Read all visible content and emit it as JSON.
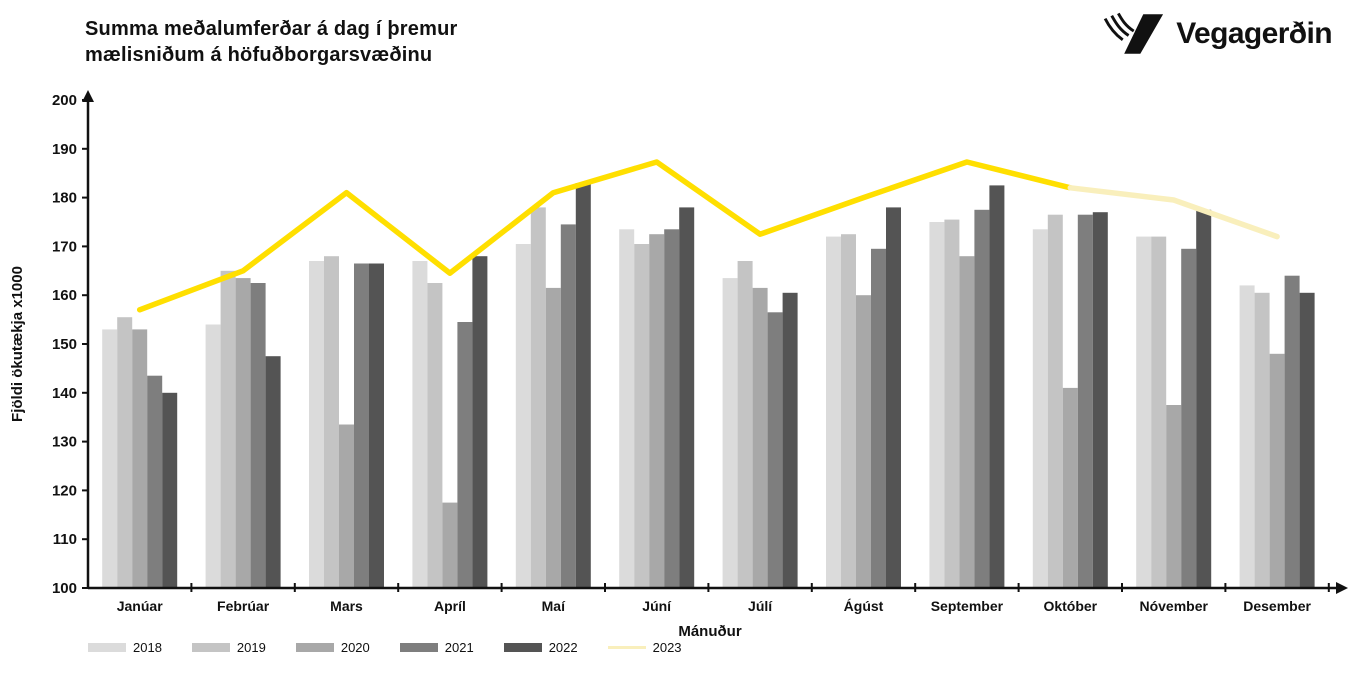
{
  "header": {
    "title_line1": "Summa meðalumferðar á dag í þremur",
    "title_line2": "mælisniðum á höfuðborgarsvæðinu",
    "logo_text": "Vegagerðin"
  },
  "chart_data": {
    "type": "bar",
    "title": "Summa meðalumferðar á dag í þremur mælisniðum á höfuðborgarsvæðinu",
    "xlabel": "Mánuður",
    "ylabel": "Fjöldi ökutækja x1000",
    "ylim": [
      100,
      200
    ],
    "yticks": [
      100,
      110,
      120,
      130,
      140,
      150,
      160,
      170,
      180,
      190,
      200
    ],
    "grid": false,
    "legend_position": "bottom-left",
    "categories": [
      "Janúar",
      "Febrúar",
      "Mars",
      "Apríl",
      "Maí",
      "Júní",
      "Júlí",
      "Ágúst",
      "September",
      "Október",
      "Nóvember",
      "Desember"
    ],
    "series": [
      {
        "name": "2018",
        "type": "bar",
        "color": "#dbdbdb",
        "values": [
          153,
          154,
          167,
          167,
          170.5,
          173.5,
          163.5,
          172,
          175,
          173.5,
          172,
          162
        ]
      },
      {
        "name": "2019",
        "type": "bar",
        "color": "#c4c4c4",
        "values": [
          155.5,
          165,
          168,
          162.5,
          178,
          170.5,
          167,
          172.5,
          175.5,
          176.5,
          172,
          160.5
        ]
      },
      {
        "name": "2020",
        "type": "bar",
        "color": "#a8a8a8",
        "values": [
          153,
          163.5,
          133.5,
          117.5,
          161.5,
          172.5,
          161.5,
          160,
          168,
          141,
          137.5,
          148
        ]
      },
      {
        "name": "2021",
        "type": "bar",
        "color": "#7e7e7e",
        "values": [
          143.5,
          162.5,
          166.5,
          154.5,
          174.5,
          173.5,
          156.5,
          169.5,
          177.5,
          176.5,
          169.5,
          164
        ]
      },
      {
        "name": "2022",
        "type": "bar",
        "color": "#545454",
        "values": [
          140,
          147.5,
          166.5,
          168,
          183,
          178,
          160.5,
          178,
          182.5,
          177,
          177.5,
          160.5
        ]
      },
      {
        "name": "2023",
        "type": "line",
        "color": "#ffdf00",
        "color_faded": "#f9efbc",
        "faded_from_index": 9,
        "values": [
          157,
          165,
          181,
          164.5,
          181,
          187.3,
          172.5,
          180,
          187.3,
          182,
          179.5,
          172
        ]
      }
    ]
  }
}
